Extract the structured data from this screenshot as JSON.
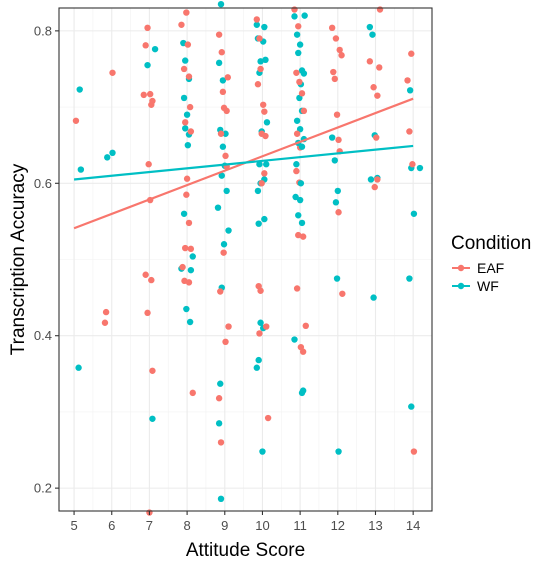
{
  "chart_data": {
    "type": "scatter",
    "title": "",
    "xlabel": "Attitude Score",
    "ylabel": "Transcription Accuracy",
    "xlim": [
      4.6,
      14.5
    ],
    "ylim": [
      0.17,
      0.83
    ],
    "x_ticks": [
      5,
      6,
      7,
      8,
      9,
      10,
      11,
      12,
      13,
      14
    ],
    "y_ticks": [
      0.2,
      0.4,
      0.6,
      0.8
    ],
    "x_tick_labels": [
      "5",
      "6",
      "7",
      "8",
      "9",
      "10",
      "11",
      "12",
      "13",
      "14"
    ],
    "y_tick_labels": [
      "0.2",
      "0.4",
      "0.6",
      "0.8"
    ],
    "grid": true,
    "legend": {
      "title": "Condition",
      "position": "right",
      "entries": [
        {
          "label": "EAF",
          "color": "#F8766D"
        },
        {
          "label": "WF",
          "color": "#00BFC4"
        }
      ]
    },
    "series": [
      {
        "name": "EAF",
        "color": "#F8766D",
        "trend": {
          "x": [
            5,
            14
          ],
          "y": [
            0.541,
            0.711
          ]
        },
        "points": [
          [
            5.05,
            0.682
          ],
          [
            5.85,
            0.431
          ],
          [
            5.82,
            0.417
          ],
          [
            6.02,
            0.745
          ],
          [
            6.85,
            0.716
          ],
          [
            6.9,
            0.781
          ],
          [
            6.95,
            0.804
          ],
          [
            7.02,
            0.717
          ],
          [
            7.05,
            0.703
          ],
          [
            7.08,
            0.708
          ],
          [
            6.98,
            0.625
          ],
          [
            7.02,
            0.578
          ],
          [
            6.9,
            0.48
          ],
          [
            6.95,
            0.43
          ],
          [
            7.05,
            0.473
          ],
          [
            7.08,
            0.354
          ],
          [
            7.0,
            0.168
          ],
          [
            7.85,
            0.808
          ],
          [
            7.92,
            0.75
          ],
          [
            7.98,
            0.824
          ],
          [
            8.02,
            0.782
          ],
          [
            8.05,
            0.74
          ],
          [
            8.08,
            0.7
          ],
          [
            8.1,
            0.668
          ],
          [
            7.95,
            0.68
          ],
          [
            8.0,
            0.606
          ],
          [
            7.98,
            0.585
          ],
          [
            8.05,
            0.548
          ],
          [
            7.95,
            0.515
          ],
          [
            8.1,
            0.514
          ],
          [
            7.88,
            0.49
          ],
          [
            7.93,
            0.472
          ],
          [
            8.05,
            0.47
          ],
          [
            8.15,
            0.325
          ],
          [
            8.85,
            0.795
          ],
          [
            8.92,
            0.772
          ],
          [
            8.95,
            0.72
          ],
          [
            8.98,
            0.699
          ],
          [
            9.05,
            0.695
          ],
          [
            8.9,
            0.665
          ],
          [
            8.88,
            0.458
          ],
          [
            9.02,
            0.636
          ],
          [
            9.05,
            0.622
          ],
          [
            8.97,
            0.509
          ],
          [
            9.1,
            0.412
          ],
          [
            9.02,
            0.392
          ],
          [
            8.85,
            0.318
          ],
          [
            8.9,
            0.26
          ],
          [
            9.08,
            0.739
          ],
          [
            9.85,
            0.815
          ],
          [
            9.92,
            0.79
          ],
          [
            9.95,
            0.75
          ],
          [
            10.02,
            0.703
          ],
          [
            10.05,
            0.694
          ],
          [
            9.98,
            0.665
          ],
          [
            10.08,
            0.662
          ],
          [
            9.98,
            0.6
          ],
          [
            10.05,
            0.613
          ],
          [
            9.9,
            0.465
          ],
          [
            9.95,
            0.459
          ],
          [
            10.1,
            0.412
          ],
          [
            9.92,
            0.403
          ],
          [
            10.15,
            0.292
          ],
          [
            9.88,
            0.73
          ],
          [
            10.85,
            0.828
          ],
          [
            10.95,
            0.806
          ],
          [
            10.9,
            0.745
          ],
          [
            10.98,
            0.733
          ],
          [
            11.05,
            0.718
          ],
          [
            11.1,
            0.695
          ],
          [
            10.92,
            0.665
          ],
          [
            11.0,
            0.647
          ],
          [
            10.9,
            0.616
          ],
          [
            10.98,
            0.601
          ],
          [
            10.95,
            0.532
          ],
          [
            11.08,
            0.53
          ],
          [
            10.92,
            0.462
          ],
          [
            11.02,
            0.385
          ],
          [
            11.08,
            0.379
          ],
          [
            11.15,
            0.413
          ],
          [
            11.85,
            0.804
          ],
          [
            11.95,
            0.79
          ],
          [
            12.05,
            0.775
          ],
          [
            12.1,
            0.768
          ],
          [
            11.92,
            0.737
          ],
          [
            11.98,
            0.69
          ],
          [
            12.02,
            0.657
          ],
          [
            12.05,
            0.642
          ],
          [
            12.02,
            0.562
          ],
          [
            12.12,
            0.455
          ],
          [
            11.88,
            0.746
          ],
          [
            12.85,
            0.76
          ],
          [
            12.95,
            0.726
          ],
          [
            13.05,
            0.715
          ],
          [
            13.1,
            0.752
          ],
          [
            13.12,
            0.828
          ],
          [
            13.05,
            0.605
          ],
          [
            12.98,
            0.595
          ],
          [
            13.02,
            0.66
          ],
          [
            13.85,
            0.735
          ],
          [
            13.95,
            0.77
          ],
          [
            13.9,
            0.668
          ],
          [
            13.98,
            0.625
          ],
          [
            14.02,
            0.248
          ]
        ]
      },
      {
        "name": "WF",
        "color": "#00BFC4",
        "trend": {
          "x": [
            5,
            14
          ],
          "y": [
            0.605,
            0.649
          ]
        },
        "points": [
          [
            5.15,
            0.723
          ],
          [
            5.18,
            0.618
          ],
          [
            5.12,
            0.358
          ],
          [
            5.88,
            0.634
          ],
          [
            6.02,
            0.64
          ],
          [
            6.95,
            0.755
          ],
          [
            7.15,
            0.776
          ],
          [
            7.08,
            0.291
          ],
          [
            7.9,
            0.784
          ],
          [
            7.95,
            0.761
          ],
          [
            8.05,
            0.737
          ],
          [
            7.92,
            0.712
          ],
          [
            8.0,
            0.69
          ],
          [
            7.95,
            0.672
          ],
          [
            8.05,
            0.664
          ],
          [
            8.02,
            0.65
          ],
          [
            7.92,
            0.56
          ],
          [
            7.98,
            0.435
          ],
          [
            8.1,
            0.486
          ],
          [
            8.15,
            0.504
          ],
          [
            7.85,
            0.488
          ],
          [
            8.08,
            0.418
          ],
          [
            8.9,
            0.835
          ],
          [
            8.85,
            0.758
          ],
          [
            8.95,
            0.735
          ],
          [
            8.88,
            0.67
          ],
          [
            9.02,
            0.665
          ],
          [
            8.95,
            0.648
          ],
          [
            9.0,
            0.623
          ],
          [
            8.92,
            0.61
          ],
          [
            9.05,
            0.59
          ],
          [
            8.82,
            0.568
          ],
          [
            8.98,
            0.52
          ],
          [
            9.1,
            0.538
          ],
          [
            8.92,
            0.463
          ],
          [
            8.88,
            0.337
          ],
          [
            8.85,
            0.285
          ],
          [
            8.9,
            0.186
          ],
          [
            9.85,
            0.808
          ],
          [
            9.88,
            0.79
          ],
          [
            10.05,
            0.805
          ],
          [
            10.02,
            0.786
          ],
          [
            9.95,
            0.76
          ],
          [
            10.08,
            0.762
          ],
          [
            9.92,
            0.745
          ],
          [
            10.12,
            0.68
          ],
          [
            9.98,
            0.668
          ],
          [
            9.92,
            0.625
          ],
          [
            10.05,
            0.605
          ],
          [
            10.1,
            0.625
          ],
          [
            9.95,
            0.6
          ],
          [
            9.88,
            0.59
          ],
          [
            10.05,
            0.553
          ],
          [
            9.9,
            0.547
          ],
          [
            9.95,
            0.417
          ],
          [
            10.02,
            0.41
          ],
          [
            9.9,
            0.368
          ],
          [
            10.0,
            0.248
          ],
          [
            9.85,
            0.358
          ],
          [
            10.85,
            0.819
          ],
          [
            10.92,
            0.795
          ],
          [
            11.0,
            0.782
          ],
          [
            10.95,
            0.771
          ],
          [
            11.05,
            0.748
          ],
          [
            11.1,
            0.744
          ],
          [
            11.02,
            0.73
          ],
          [
            10.98,
            0.712
          ],
          [
            11.05,
            0.695
          ],
          [
            10.92,
            0.682
          ],
          [
            11.0,
            0.671
          ],
          [
            11.1,
            0.658
          ],
          [
            10.95,
            0.653
          ],
          [
            11.05,
            0.648
          ],
          [
            10.9,
            0.625
          ],
          [
            11.02,
            0.6
          ],
          [
            10.88,
            0.582
          ],
          [
            11.0,
            0.578
          ],
          [
            10.95,
            0.558
          ],
          [
            11.05,
            0.548
          ],
          [
            10.85,
            0.395
          ],
          [
            11.08,
            0.328
          ],
          [
            11.05,
            0.325
          ],
          [
            11.12,
            0.82
          ],
          [
            11.85,
            0.66
          ],
          [
            11.92,
            0.63
          ],
          [
            12.0,
            0.59
          ],
          [
            11.95,
            0.575
          ],
          [
            11.98,
            0.475
          ],
          [
            12.02,
            0.248
          ],
          [
            12.85,
            0.805
          ],
          [
            12.92,
            0.795
          ],
          [
            12.98,
            0.663
          ],
          [
            12.88,
            0.605
          ],
          [
            13.05,
            0.607
          ],
          [
            12.95,
            0.45
          ],
          [
            13.92,
            0.722
          ],
          [
            13.95,
            0.62
          ],
          [
            14.02,
            0.56
          ],
          [
            13.9,
            0.475
          ],
          [
            14.18,
            0.62
          ],
          [
            13.95,
            0.307
          ]
        ]
      }
    ]
  }
}
